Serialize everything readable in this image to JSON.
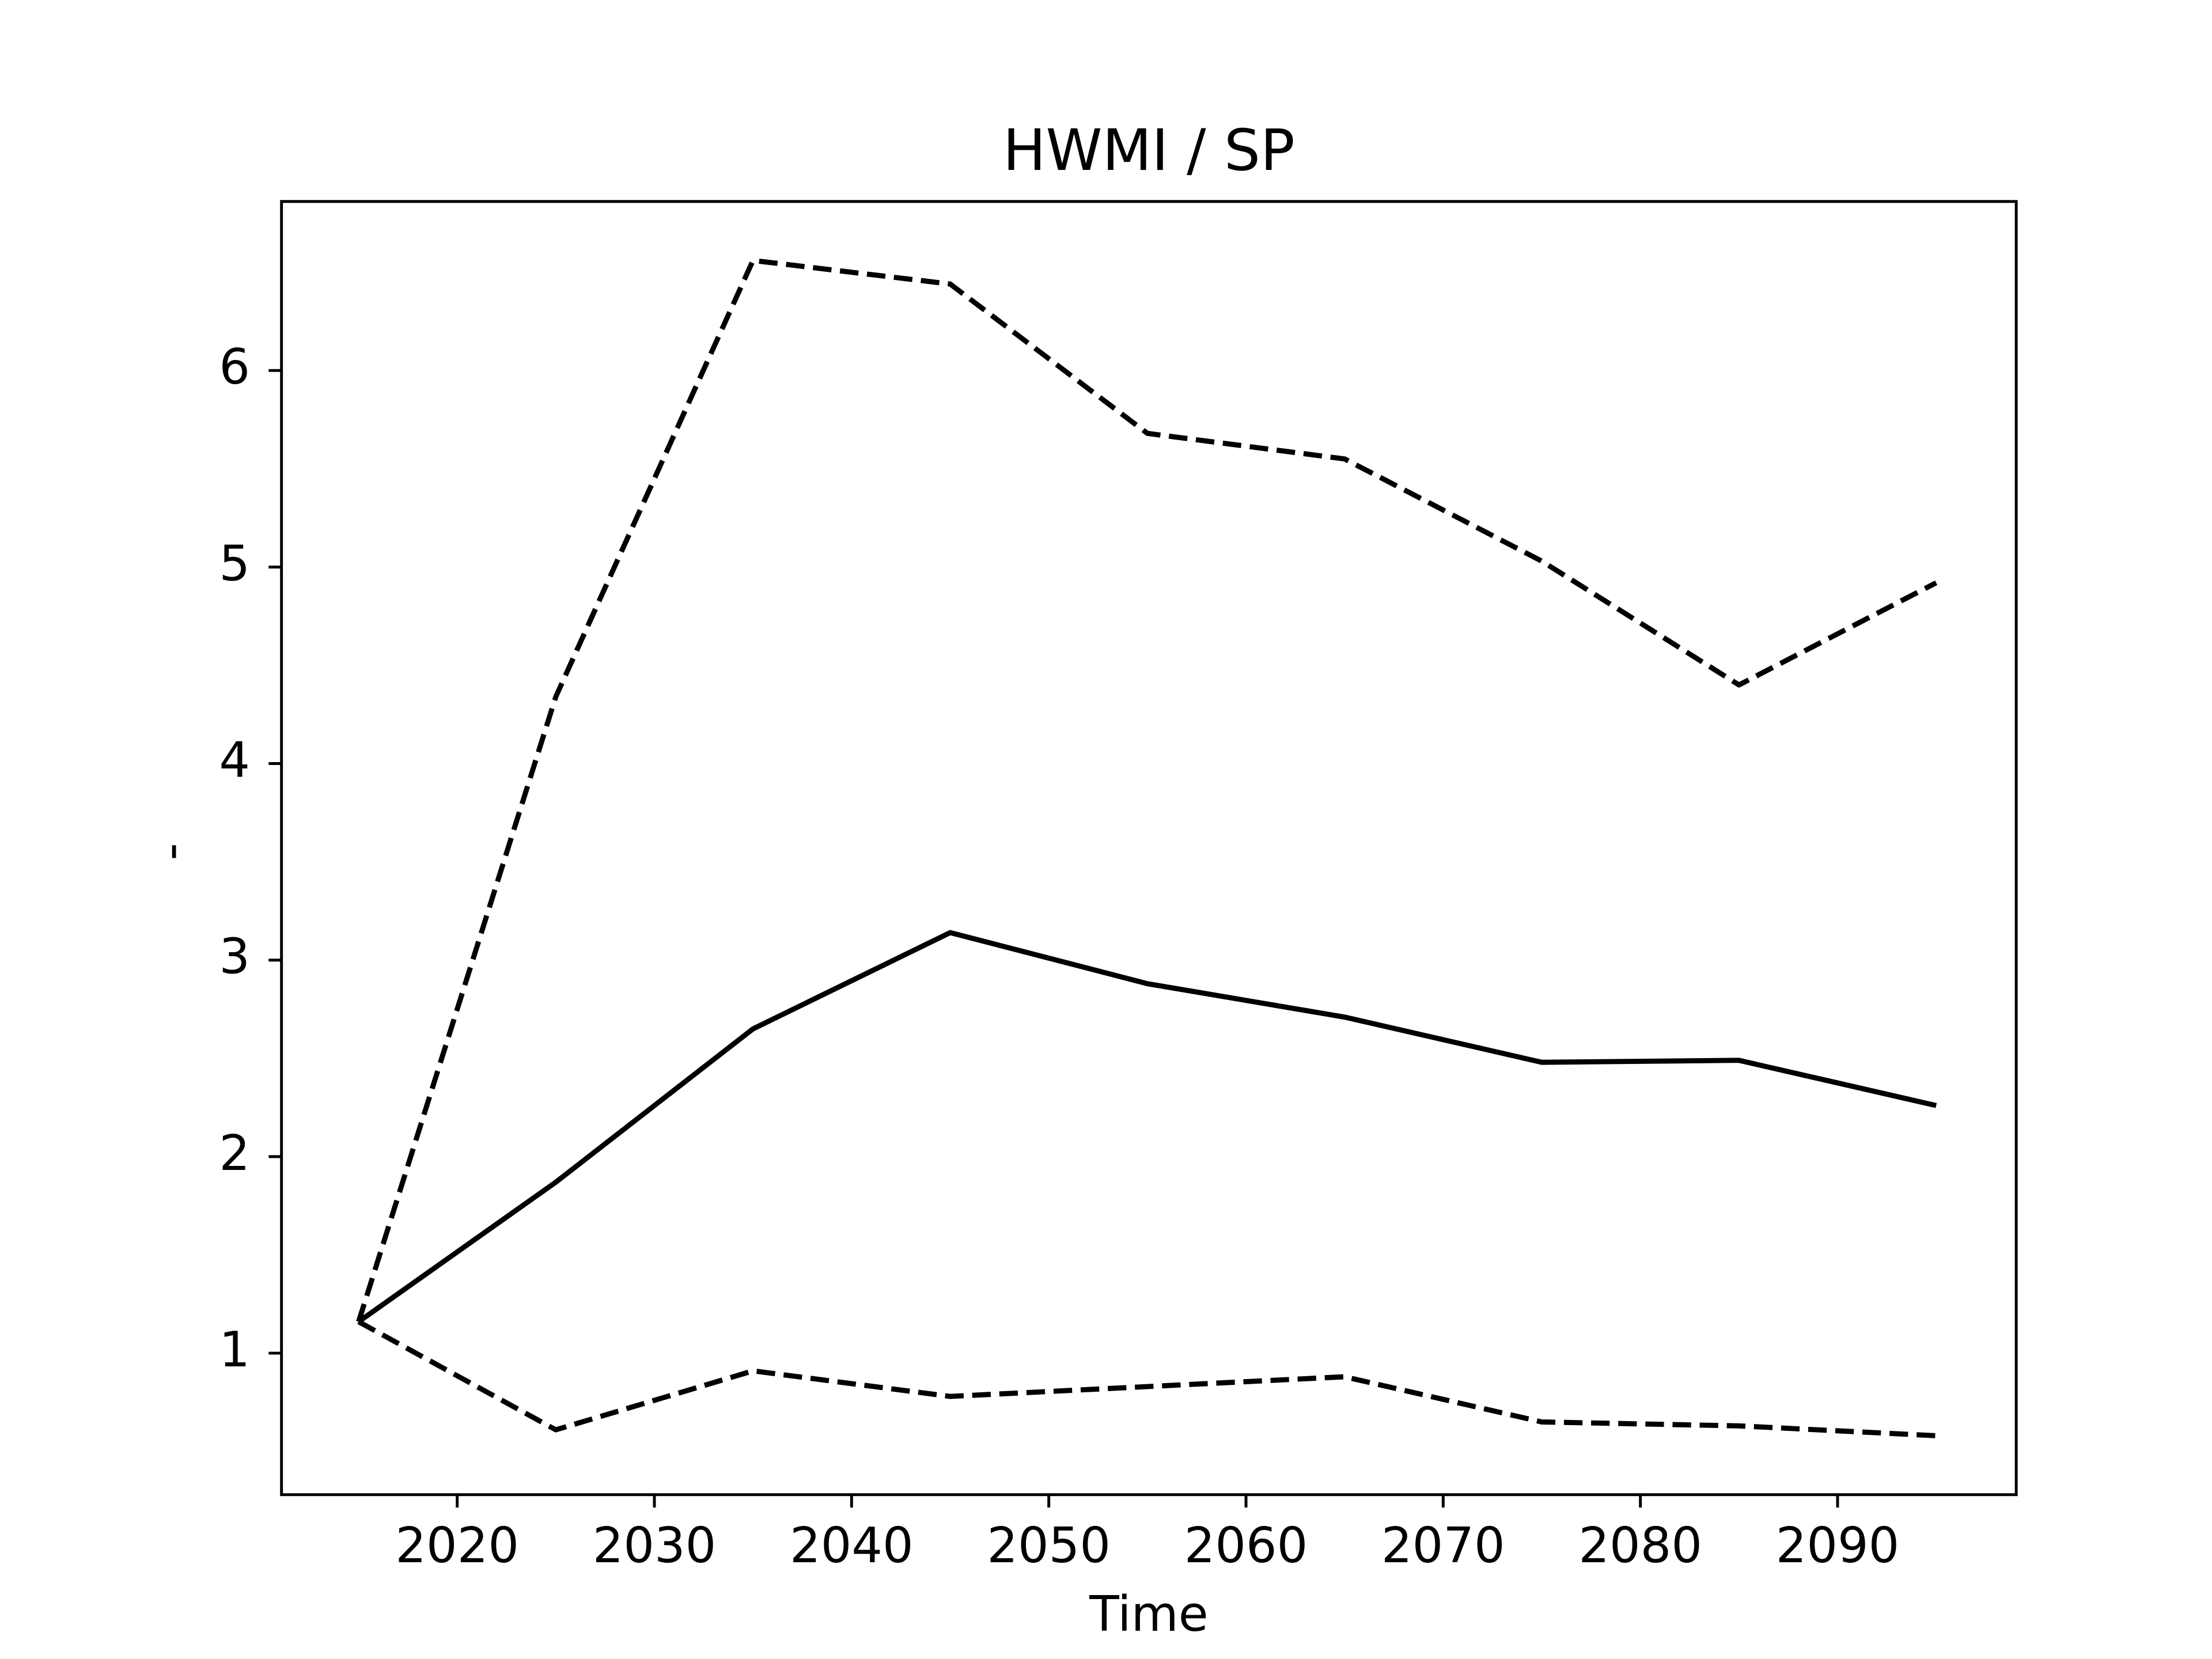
{
  "chart_data": {
    "type": "line",
    "title": "HWMI / SP",
    "xlabel": "Time",
    "ylabel": "-",
    "x": [
      2015,
      2025,
      2035,
      2045,
      2055,
      2065,
      2075,
      2085,
      2095
    ],
    "series": [
      {
        "color": "#000000",
        "dashed": false,
        "values": [
          1.16,
          1.87,
          2.65,
          3.14,
          2.88,
          2.71,
          2.48,
          2.49,
          2.26
        ]
      },
      {
        "color": "#000000",
        "dashed": true,
        "values": [
          1.16,
          4.34,
          6.56,
          6.44,
          5.68,
          5.55,
          5.03,
          4.4,
          4.92
        ]
      },
      {
        "color": "#000000",
        "dashed": true,
        "values": [
          1.16,
          0.61,
          0.91,
          0.78,
          0.83,
          0.88,
          0.65,
          0.63,
          0.58
        ]
      }
    ],
    "xlim": [
      2011.09,
      2099.06
    ],
    "ylim": [
      0.28,
      6.86
    ],
    "xticks": [
      2020,
      2030,
      2040,
      2050,
      2060,
      2070,
      2080,
      2090
    ],
    "yticks": [
      1,
      2,
      3,
      4,
      5,
      6
    ],
    "grid": false
  }
}
